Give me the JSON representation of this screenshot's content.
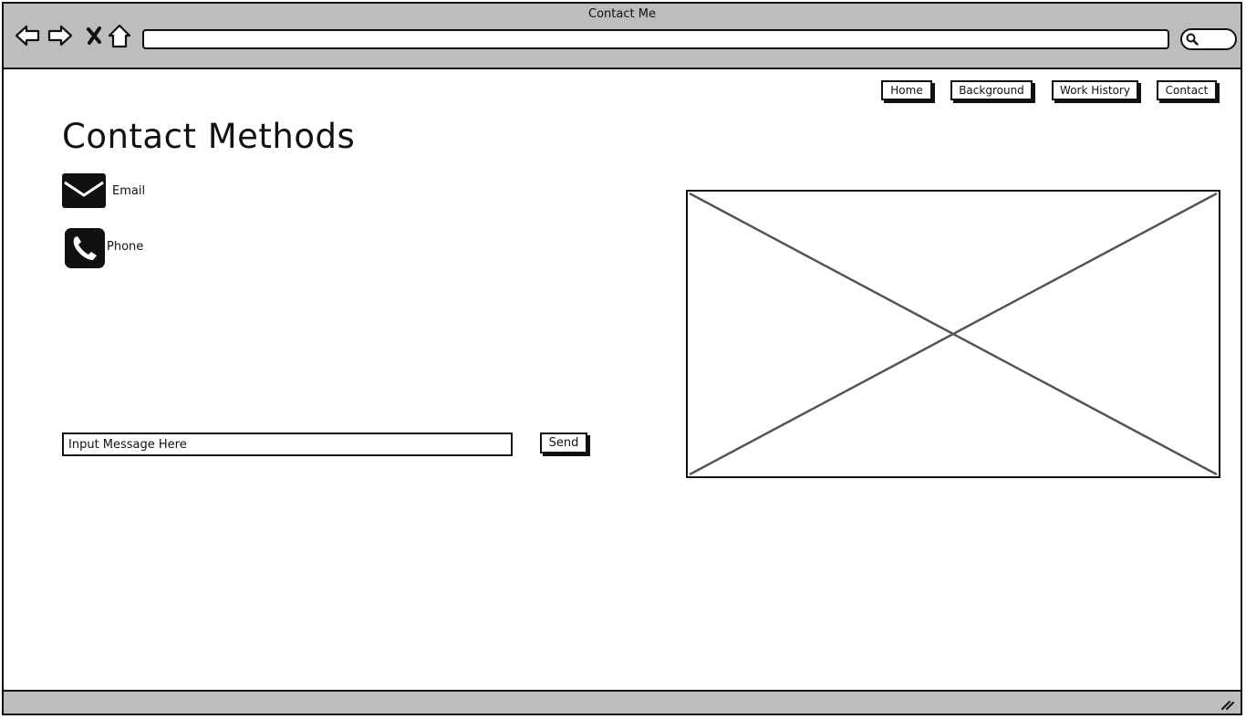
{
  "window": {
    "title": "Contact Me",
    "icons": {
      "back": "back-arrow-icon",
      "forward": "forward-arrow-icon",
      "stop": "close-icon",
      "home": "home-icon",
      "search": "search-icon",
      "resize": "resize-grip-icon"
    }
  },
  "nav": {
    "items": [
      {
        "label": "Home"
      },
      {
        "label": "Background"
      },
      {
        "label": "Work History"
      },
      {
        "label": "Contact"
      }
    ]
  },
  "main": {
    "title": "Contact Methods",
    "methods": [
      {
        "label": "Email",
        "icon": "envelope-icon"
      },
      {
        "label": "Phone",
        "icon": "phone-icon"
      }
    ],
    "message": {
      "placeholder": "Input Message Here",
      "value": ""
    },
    "send_label": "Send",
    "image": "image-placeholder"
  },
  "colors": {
    "chrome": "#bdbdbd",
    "ink": "#111111",
    "placeholder_lines": "#555555"
  }
}
